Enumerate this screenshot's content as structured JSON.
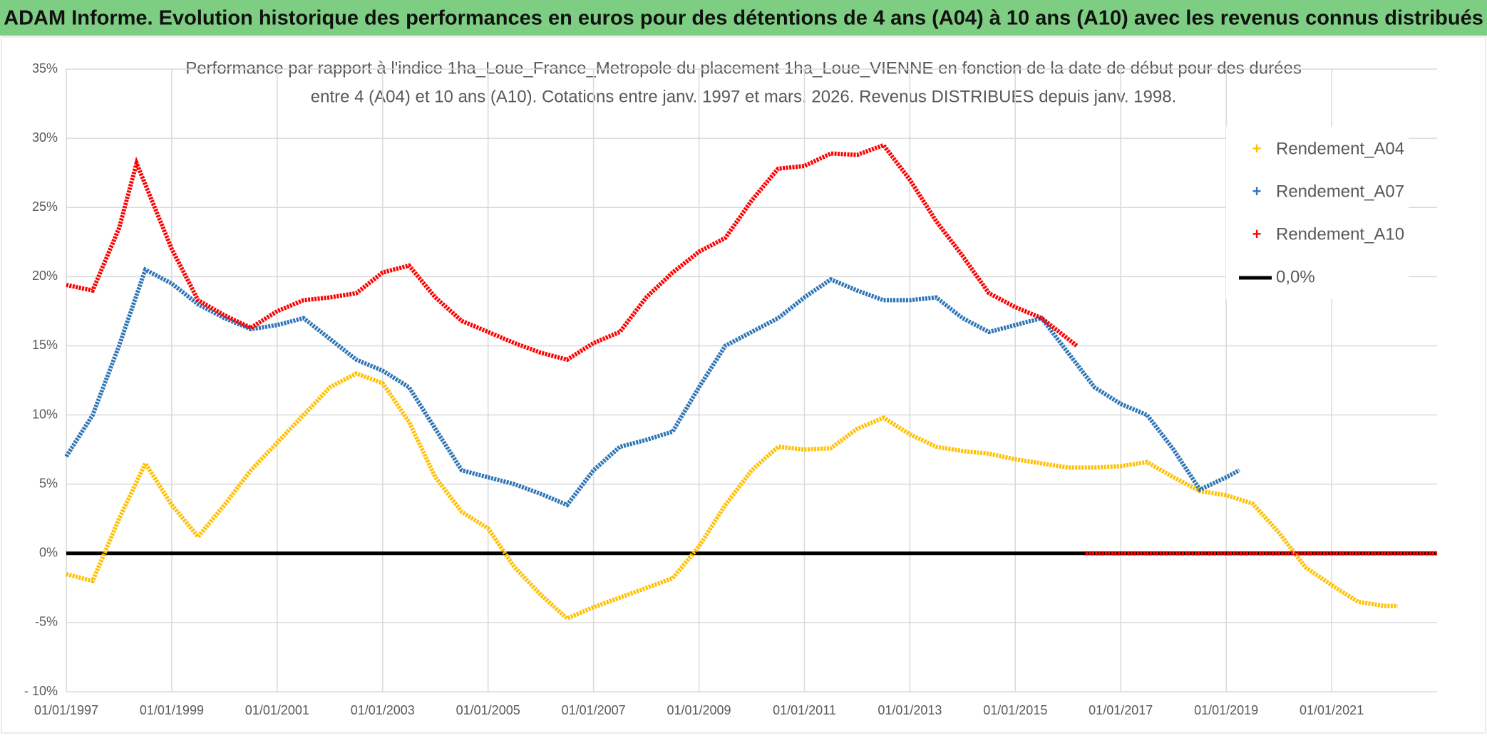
{
  "header": {
    "title": "ADAM Informe. Evolution historique des performances en euros pour des détentions de 4 ans (A04) à 10 ans (A10) avec les revenus connus distribués"
  },
  "chart_data": {
    "type": "line",
    "title": [
      "Performance par rapport à l'indice 1ha_Loue_France_Metropole  du placement 1ha_Loue_VIENNE en fonction de la date de début pour des durées",
      "entre 4 (A04) et 10 ans (A10). Cotations entre janv. 1997 et mars. 2026. Revenus DISTRIBUES depuis janv. 1998."
    ],
    "xlim": [
      "1997-01-01",
      "2023-01-01"
    ],
    "xticks": [
      {
        "value": "1997-01-01",
        "label": "01/01/1997"
      },
      {
        "value": "1999-01-01",
        "label": "01/01/1999"
      },
      {
        "value": "2001-01-01",
        "label": "01/01/2001"
      },
      {
        "value": "2003-01-01",
        "label": "01/01/2003"
      },
      {
        "value": "2005-01-01",
        "label": "01/01/2005"
      },
      {
        "value": "2007-01-01",
        "label": "01/01/2007"
      },
      {
        "value": "2009-01-01",
        "label": "01/01/2009"
      },
      {
        "value": "2011-01-01",
        "label": "01/01/2011"
      },
      {
        "value": "2013-01-01",
        "label": "01/01/2013"
      },
      {
        "value": "2015-01-01",
        "label": "01/01/2015"
      },
      {
        "value": "2017-01-01",
        "label": "01/01/2017"
      },
      {
        "value": "2019-01-01",
        "label": "01/01/2019"
      },
      {
        "value": "2021-01-01",
        "label": "01/01/2021"
      }
    ],
    "ylim": [
      -10,
      35
    ],
    "yticks": [
      {
        "value": -10,
        "label": "- 10%"
      },
      {
        "value": -5,
        "label": "-5%"
      },
      {
        "value": 0,
        "label": "0%"
      },
      {
        "value": 5,
        "label": "5%"
      },
      {
        "value": 10,
        "label": "10%"
      },
      {
        "value": 15,
        "label": "15%"
      },
      {
        "value": 20,
        "label": "20%"
      },
      {
        "value": 25,
        "label": "25%"
      },
      {
        "value": 30,
        "label": "30%"
      },
      {
        "value": 35,
        "label": "35%"
      }
    ],
    "grid": true,
    "legend": "upper right",
    "reference_line": {
      "name": "0,0%",
      "value": 0,
      "color": "#000000"
    },
    "series": [
      {
        "name": "Rendement_A04",
        "color": "#ffc000",
        "x": [
          "1997-01",
          "1997-07",
          "1998-01",
          "1998-07",
          "1999-01",
          "1999-07",
          "2000-01",
          "2000-07",
          "2001-01",
          "2001-07",
          "2002-01",
          "2002-07",
          "2003-01",
          "2003-07",
          "2004-01",
          "2004-07",
          "2005-01",
          "2005-07",
          "2006-01",
          "2006-07",
          "2007-01",
          "2007-07",
          "2008-01",
          "2008-07",
          "2009-01",
          "2009-07",
          "2010-01",
          "2010-07",
          "2011-01",
          "2011-07",
          "2012-01",
          "2012-07",
          "2013-01",
          "2013-07",
          "2014-01",
          "2014-07",
          "2015-01",
          "2015-07",
          "2016-01",
          "2016-07",
          "2017-01",
          "2017-07",
          "2018-01",
          "2018-07",
          "2019-01",
          "2019-07",
          "2020-01",
          "2020-07",
          "2021-01",
          "2021-07",
          "2022-01",
          "2022-04"
        ],
        "values": [
          -1.5,
          -2.0,
          2.5,
          6.5,
          3.5,
          1.2,
          3.5,
          6.0,
          8.0,
          10.0,
          12.0,
          13.0,
          12.3,
          9.5,
          5.5,
          3.0,
          1.8,
          -1.0,
          -3.0,
          -4.7,
          -3.9,
          -3.2,
          -2.5,
          -1.8,
          0.5,
          3.5,
          6.0,
          7.7,
          7.5,
          7.6,
          9.0,
          9.8,
          8.6,
          7.7,
          7.4,
          7.2,
          6.8,
          6.5,
          6.2,
          6.2,
          6.3,
          6.6,
          5.5,
          4.5,
          4.2,
          3.6,
          1.5,
          -1.0,
          -2.3,
          -3.5,
          -3.8,
          -3.8
        ]
      },
      {
        "name": "Rendement_A07",
        "color": "#2e75b6",
        "x": [
          "1997-01",
          "1997-07",
          "1998-01",
          "1998-07",
          "1999-01",
          "1999-07",
          "2000-01",
          "2000-07",
          "2001-01",
          "2001-07",
          "2002-01",
          "2002-07",
          "2003-01",
          "2003-07",
          "2004-01",
          "2004-07",
          "2005-01",
          "2005-07",
          "2006-01",
          "2006-07",
          "2007-01",
          "2007-07",
          "2008-01",
          "2008-07",
          "2009-01",
          "2009-07",
          "2010-01",
          "2010-07",
          "2011-01",
          "2011-07",
          "2012-01",
          "2012-07",
          "2013-01",
          "2013-07",
          "2014-01",
          "2014-07",
          "2015-01",
          "2015-07",
          "2016-01",
          "2016-07",
          "2017-01",
          "2017-07",
          "2018-01",
          "2018-07",
          "2019-01",
          "2019-04"
        ],
        "values": [
          7.0,
          10.0,
          15.0,
          20.5,
          19.5,
          18.0,
          17.0,
          16.2,
          16.5,
          17.0,
          15.5,
          14.0,
          13.2,
          12.0,
          9.0,
          6.0,
          5.5,
          5.0,
          4.3,
          3.5,
          6.0,
          7.7,
          8.2,
          8.8,
          12.0,
          15.0,
          16.0,
          17.0,
          18.5,
          19.8,
          19.0,
          18.3,
          18.3,
          18.5,
          17.0,
          16.0,
          16.5,
          17.0,
          14.5,
          12.0,
          10.8,
          10.0,
          7.5,
          4.6,
          5.5,
          6.0
        ]
      },
      {
        "name": "Rendement_A10",
        "color": "#ff0000",
        "x": [
          "1997-01",
          "1997-07",
          "1998-01",
          "1998-05",
          "1999-01",
          "1999-07",
          "2000-01",
          "2000-07",
          "2001-01",
          "2001-07",
          "2002-01",
          "2002-07",
          "2003-01",
          "2003-07",
          "2004-01",
          "2004-07",
          "2005-01",
          "2005-07",
          "2006-01",
          "2006-07",
          "2007-01",
          "2007-07",
          "2008-01",
          "2008-07",
          "2009-01",
          "2009-07",
          "2010-01",
          "2010-07",
          "2011-01",
          "2011-07",
          "2012-01",
          "2012-07",
          "2013-01",
          "2013-07",
          "2014-01",
          "2014-07",
          "2015-01",
          "2015-07",
          "2016-01",
          "2016-03",
          "2016-04",
          "2016-05",
          "2017-01",
          "2018-01",
          "2019-01",
          "2020-01",
          "2021-01",
          "2022-01",
          "2023-01"
        ],
        "values": [
          19.4,
          19.0,
          23.5,
          28.2,
          22.0,
          18.3,
          17.2,
          16.3,
          17.5,
          18.3,
          18.5,
          18.8,
          20.3,
          20.8,
          18.5,
          16.8,
          16.0,
          15.2,
          14.5,
          14.0,
          15.2,
          16.0,
          18.5,
          20.3,
          21.8,
          22.8,
          25.5,
          27.8,
          28.0,
          28.9,
          28.8,
          29.5,
          27.0,
          24.0,
          21.5,
          18.8,
          17.8,
          17.0,
          15.5,
          15.0,
          null,
          0,
          0,
          0,
          0,
          0,
          0,
          0,
          0
        ]
      }
    ]
  }
}
